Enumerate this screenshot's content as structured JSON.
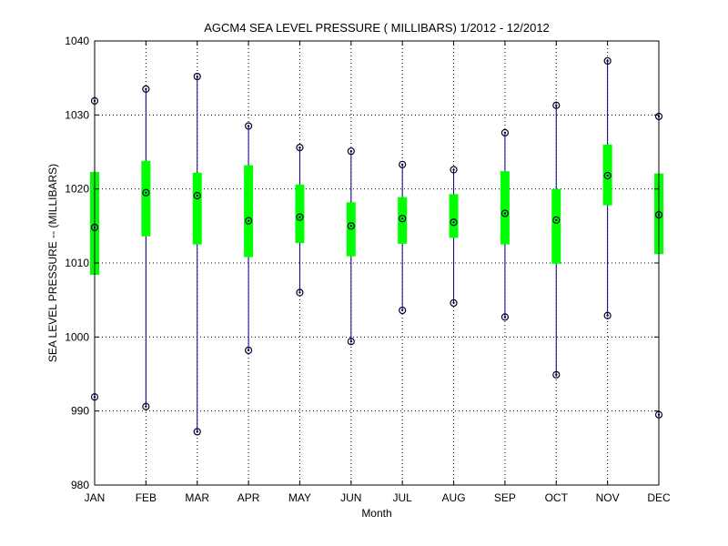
{
  "chart_data": {
    "type": "boxplot",
    "title": "AGCM4  SEA LEVEL PRESSURE ( MILLIBARS) 1/2012 - 12/2012",
    "xlabel": "Month",
    "ylabel": "SEA LEVEL PRESSURE -- (MILLIBARS)",
    "ylim": [
      980,
      1040
    ],
    "yticks": [
      980,
      990,
      1000,
      1010,
      1020,
      1030,
      1040
    ],
    "grid": true,
    "categories": [
      "JAN",
      "FEB",
      "MAR",
      "APR",
      "MAY",
      "JUN",
      "JUL",
      "AUG",
      "SEP",
      "OCT",
      "NOV",
      "DEC"
    ],
    "max": [
      1031.9,
      1033.5,
      1035.2,
      1028.5,
      1025.6,
      1025.1,
      1023.3,
      1022.6,
      1027.6,
      1031.3,
      1037.3,
      1029.8
    ],
    "q3": [
      1022.3,
      1023.8,
      1022.2,
      1023.2,
      1020.6,
      1018.2,
      1018.9,
      1019.3,
      1022.4,
      1020.0,
      1026.0,
      1022.1
    ],
    "median": [
      1014.8,
      1019.5,
      1019.1,
      1015.7,
      1016.2,
      1015.0,
      1016.0,
      1015.5,
      1016.7,
      1015.8,
      1021.8,
      1016.5
    ],
    "q1": [
      1008.4,
      1013.6,
      1012.5,
      1010.8,
      1012.7,
      1010.9,
      1012.6,
      1013.4,
      1012.5,
      1009.9,
      1017.8,
      1011.2
    ],
    "min": [
      991.9,
      990.6,
      987.2,
      998.2,
      1006.0,
      999.4,
      1003.6,
      1004.6,
      1002.7,
      994.9,
      1002.9,
      989.5
    ],
    "colors": {
      "whisker": "#00008b",
      "box": "#00ff00",
      "marker": "#000033",
      "grid": "#000000"
    }
  }
}
